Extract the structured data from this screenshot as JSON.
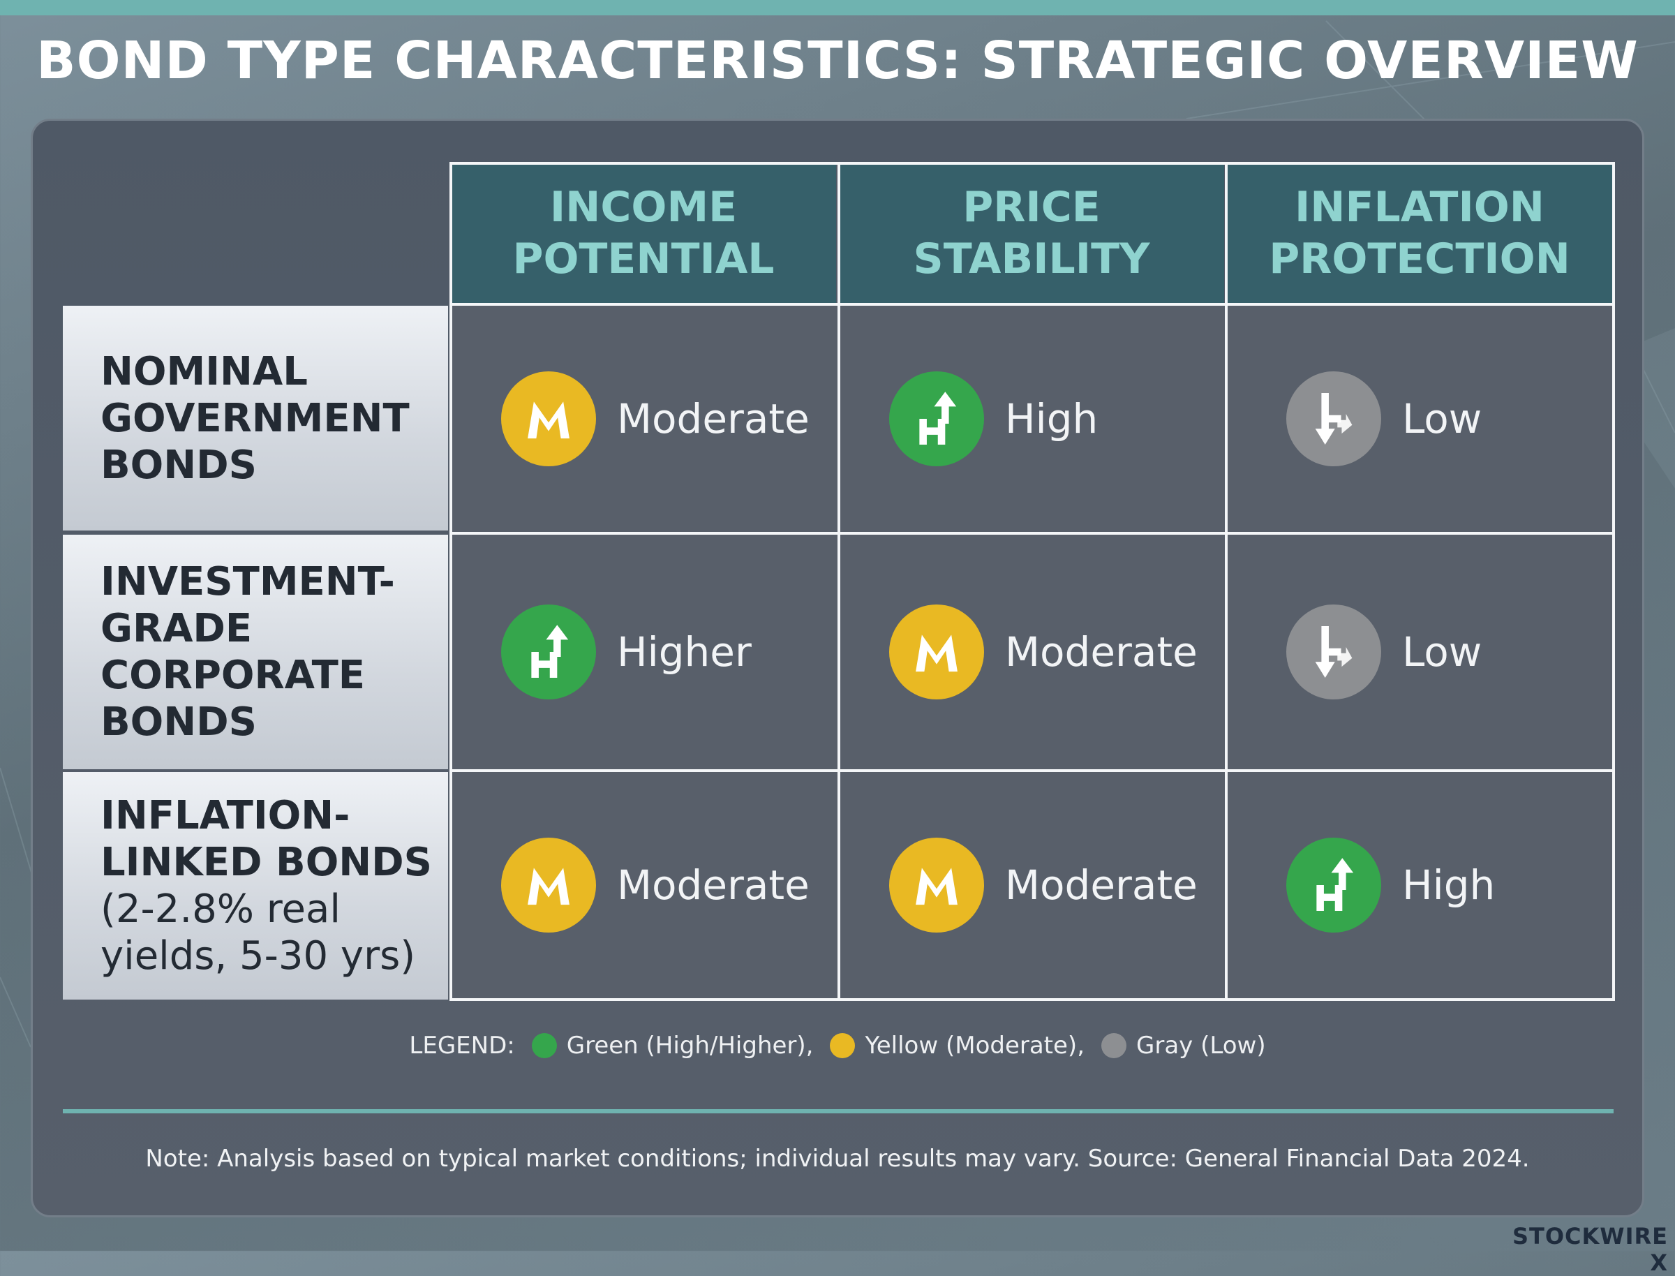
{
  "title": "BOND TYPE CHARACTERISTICS: STRATEGIC OVERVIEW",
  "colors": {
    "green": "#35a64c",
    "yellow": "#e9b923",
    "gray": "#8d8f92",
    "teal": "#6fb3b0",
    "header_bg": "#36606a",
    "header_text": "#8fd3cf"
  },
  "columns": [
    {
      "line1": "INCOME",
      "line2": "POTENTIAL"
    },
    {
      "line1": "PRICE",
      "line2": "STABILITY"
    },
    {
      "line1": "INFLATION",
      "line2": "PROTECTION"
    }
  ],
  "rows": [
    {
      "heading_lines": [
        "NOMINAL",
        "GOVERNMENT",
        "BONDS"
      ],
      "cells": [
        {
          "label": "Moderate",
          "rating": "moderate",
          "icon": "m-letter-icon"
        },
        {
          "label": "High",
          "rating": "high",
          "icon": "h-up-arrow-icon"
        },
        {
          "label": "Low",
          "rating": "low",
          "icon": "down-arrow-icon"
        }
      ]
    },
    {
      "heading_lines": [
        "INVESTMENT-",
        "GRADE",
        "CORPORATE",
        "BONDS"
      ],
      "cells": [
        {
          "label": "Higher",
          "rating": "high",
          "icon": "h-up-arrow-icon"
        },
        {
          "label": "Moderate",
          "rating": "moderate",
          "icon": "m-letter-icon"
        },
        {
          "label": "Low",
          "rating": "low",
          "icon": "down-arrow-icon"
        }
      ]
    },
    {
      "heading_lines": [
        "INFLATION-",
        "LINKED BONDS"
      ],
      "heading_sub_lines": [
        "(2-2.8% real",
        "yields, 5-30 yrs)"
      ],
      "cells": [
        {
          "label": "Moderate",
          "rating": "moderate",
          "icon": "m-letter-icon"
        },
        {
          "label": "Moderate",
          "rating": "moderate",
          "icon": "m-letter-icon"
        },
        {
          "label": "High",
          "rating": "high",
          "icon": "h-up-arrow-icon"
        }
      ]
    }
  ],
  "legend": {
    "prefix": "LEGEND:",
    "items": [
      {
        "label": "Green (High/Higher),",
        "color": "#35a64c"
      },
      {
        "label": "Yellow (Moderate),",
        "color": "#e9b923"
      },
      {
        "label": "Gray (Low)",
        "color": "#8d8f92"
      }
    ]
  },
  "note": "Note: Analysis based on typical market conditions; individual results may vary. Source: General Financial Data 2024.",
  "brand": "STOCKWIRE X"
}
